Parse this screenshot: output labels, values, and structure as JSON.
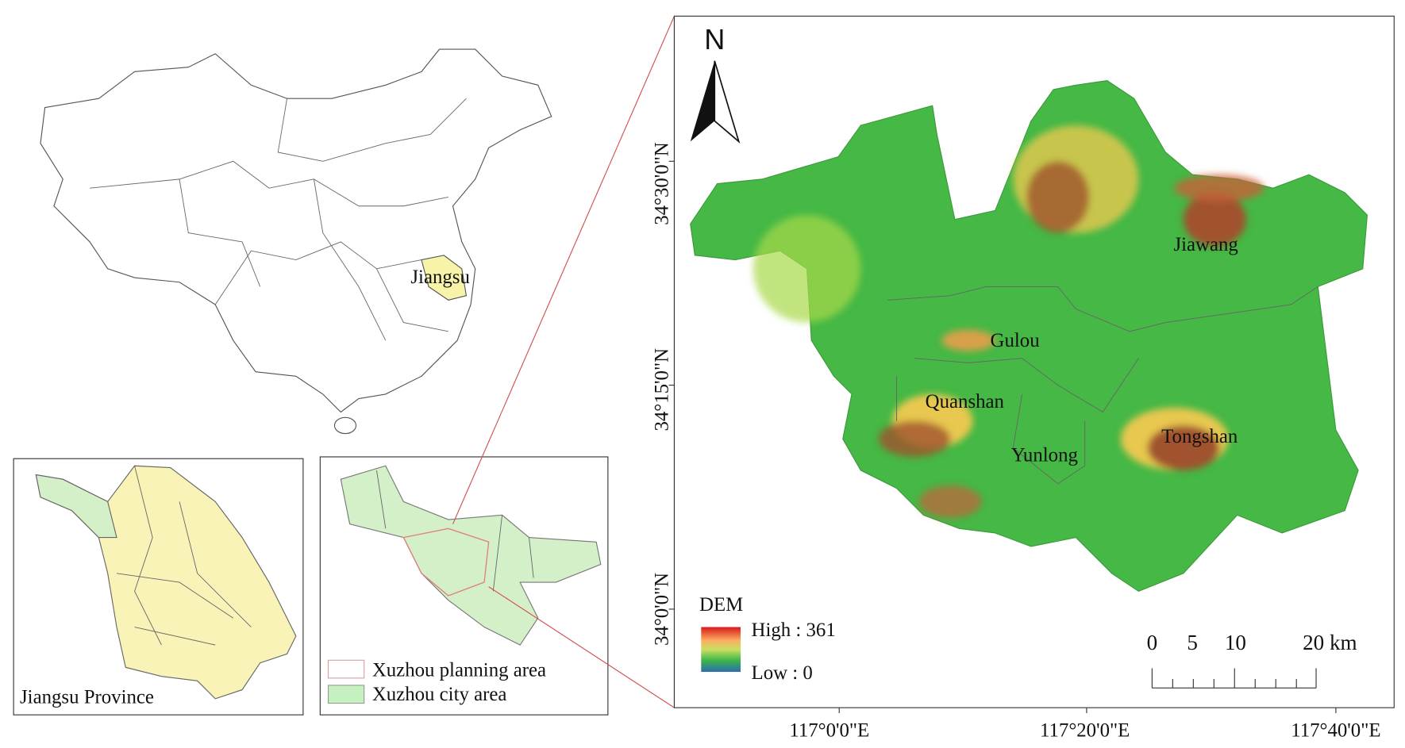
{
  "china_map": {
    "label": "Jiangsu"
  },
  "jiangsu_inset": {
    "label": "Jiangsu Province"
  },
  "xuzhou_inset": {
    "legend": [
      "Xuzhou planning area",
      "Xuzhou city area"
    ]
  },
  "main_map": {
    "north": "N",
    "lat_labels": [
      "34°30'0\"N",
      "34°15'0\"N",
      "34°0'0\"N"
    ],
    "lon_labels": [
      "117°0'0\"E",
      "117°20'0\"E",
      "117°40'0\"E"
    ],
    "districts": [
      "Jiawang",
      "Gulou",
      "Quanshan",
      "Yunlong",
      "Tongshan"
    ],
    "legend": {
      "title": "DEM",
      "high": "High : 361",
      "low": "Low : 0"
    },
    "scale_bar": [
      "0",
      "5",
      "10",
      "20 km"
    ]
  }
}
